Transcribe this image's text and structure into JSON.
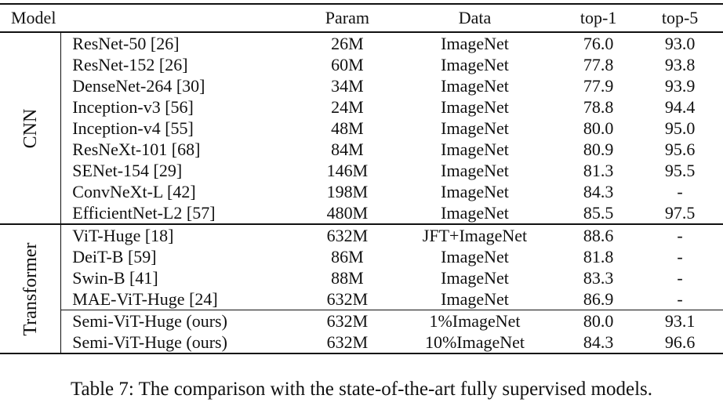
{
  "table": {
    "headers": {
      "model": "Model",
      "param": "Param",
      "data": "Data",
      "top1": "top-1",
      "top5": "top-5"
    },
    "groups": {
      "cnn": "CNN",
      "transformer": "Transformer"
    },
    "cnn_rows": [
      {
        "model": "ResNet-50 [26]",
        "param": "26M",
        "data": "ImageNet",
        "top1": "76.0",
        "top5": "93.0"
      },
      {
        "model": "ResNet-152 [26]",
        "param": "60M",
        "data": "ImageNet",
        "top1": "77.8",
        "top5": "93.8"
      },
      {
        "model": "DenseNet-264 [30]",
        "param": "34M",
        "data": "ImageNet",
        "top1": "77.9",
        "top5": "93.9"
      },
      {
        "model": "Inception-v3 [56]",
        "param": "24M",
        "data": "ImageNet",
        "top1": "78.8",
        "top5": "94.4"
      },
      {
        "model": "Inception-v4 [55]",
        "param": "48M",
        "data": "ImageNet",
        "top1": "80.0",
        "top5": "95.0"
      },
      {
        "model": "ResNeXt-101 [68]",
        "param": "84M",
        "data": "ImageNet",
        "top1": "80.9",
        "top5": "95.6"
      },
      {
        "model": "SENet-154 [29]",
        "param": "146M",
        "data": "ImageNet",
        "top1": "81.3",
        "top5": "95.5"
      },
      {
        "model": "ConvNeXt-L [42]",
        "param": "198M",
        "data": "ImageNet",
        "top1": "84.3",
        "top5": "-"
      },
      {
        "model": "EfficientNet-L2 [57]",
        "param": "480M",
        "data": "ImageNet",
        "top1": "85.5",
        "top5": "97.5"
      }
    ],
    "transformer_rows": [
      {
        "model": "ViT-Huge [18]",
        "param": "632M",
        "data": "JFT+ImageNet",
        "top1": "88.6",
        "top5": "-"
      },
      {
        "model": "DeiT-B [59]",
        "param": "86M",
        "data": "ImageNet",
        "top1": "81.8",
        "top5": "-"
      },
      {
        "model": "Swin-B [41]",
        "param": "88M",
        "data": "ImageNet",
        "top1": "83.3",
        "top5": "-"
      },
      {
        "model": "MAE-ViT-Huge [24]",
        "param": "632M",
        "data": "ImageNet",
        "top1": "86.9",
        "top5": "-"
      }
    ],
    "ours_rows": [
      {
        "model": "Semi-ViT-Huge (ours)",
        "param": "632M",
        "data": "1%ImageNet",
        "top1": "80.0",
        "top5": "93.1"
      },
      {
        "model": "Semi-ViT-Huge (ours)",
        "param": "632M",
        "data": "10%ImageNet",
        "top1": "84.3",
        "top5": "96.6"
      }
    ]
  },
  "caption": "Table 7: The comparison with the state-of-the-art fully supervised models."
}
